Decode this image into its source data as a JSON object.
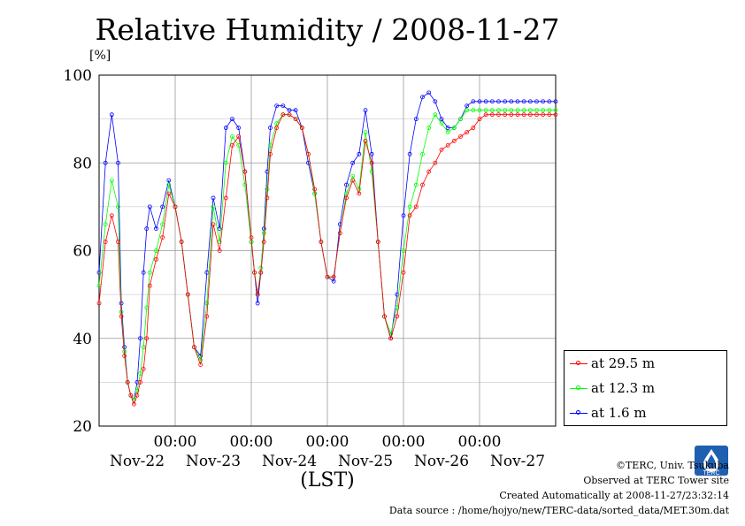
{
  "header": {
    "title": "Relative Humidity / 2008-11-27",
    "unit": "[%]"
  },
  "chart_data": {
    "type": "line",
    "title": "Relative Humidity / 2008-11-27",
    "ylabel": "[%]",
    "xlabel": "(LST)",
    "ylim": [
      20,
      100
    ],
    "xlim": [
      0,
      144
    ],
    "y_ticks": [
      20,
      40,
      60,
      80,
      100
    ],
    "x_tick_positions_hours": [
      0,
      24,
      48,
      72,
      96,
      120
    ],
    "x_time_labels": [
      "00:00",
      "00:00",
      "00:00",
      "00:00",
      "00:00"
    ],
    "x_date_labels": [
      "Nov-22",
      "Nov-23",
      "Nov-24",
      "Nov-25",
      "Nov-26",
      "Nov-27"
    ],
    "x_major_grid_hours": [
      24,
      48,
      72,
      96,
      120
    ],
    "grid": true,
    "legend_position": "bottom-right",
    "series": [
      {
        "name": "at 29.5 m",
        "color": "#ff0000",
        "x": [
          0,
          2,
          4,
          6,
          7,
          8,
          9,
          10,
          11,
          12,
          13,
          14,
          15,
          16,
          18,
          20,
          22,
          24,
          26,
          28,
          30,
          32,
          34,
          36,
          38,
          40,
          42,
          44,
          46,
          48,
          49,
          50,
          51,
          52,
          53,
          54,
          56,
          58,
          60,
          62,
          64,
          66,
          68,
          70,
          72,
          74,
          76,
          78,
          80,
          82,
          84,
          86,
          88,
          90,
          92,
          94,
          96,
          98,
          100,
          102,
          104,
          106,
          108,
          110,
          112,
          114,
          116,
          118,
          120,
          122,
          124,
          126,
          128,
          130,
          132,
          134,
          136,
          138,
          140,
          142,
          144
        ],
        "values": [
          48,
          62,
          68,
          62,
          45,
          36,
          30,
          27,
          25,
          27,
          30,
          33,
          40,
          52,
          58,
          63,
          73,
          70,
          62,
          50,
          38,
          34,
          45,
          66,
          60,
          72,
          84,
          86,
          78,
          63,
          55,
          50,
          55,
          62,
          72,
          82,
          88,
          91,
          91,
          90,
          88,
          82,
          74,
          62,
          54,
          54,
          64,
          72,
          76,
          73,
          85,
          80,
          62,
          45,
          40,
          45,
          55,
          68,
          70,
          75,
          78,
          80,
          83,
          84,
          85,
          86,
          87,
          88,
          90,
          91,
          91,
          91,
          91,
          91,
          91,
          91,
          91,
          91,
          91,
          91,
          91
        ]
      },
      {
        "name": "at 12.3 m",
        "color": "#00ff00",
        "x": [
          0,
          2,
          4,
          6,
          7,
          8,
          9,
          10,
          11,
          12,
          13,
          14,
          15,
          16,
          18,
          20,
          22,
          24,
          26,
          28,
          30,
          32,
          34,
          36,
          38,
          40,
          42,
          44,
          46,
          48,
          49,
          50,
          51,
          52,
          53,
          54,
          56,
          58,
          60,
          62,
          64,
          66,
          68,
          70,
          72,
          74,
          76,
          78,
          80,
          82,
          84,
          86,
          88,
          90,
          92,
          94,
          96,
          98,
          100,
          102,
          104,
          106,
          108,
          110,
          112,
          114,
          116,
          118,
          120,
          122,
          124,
          126,
          128,
          130,
          132,
          134,
          136,
          138,
          140,
          142,
          144
        ],
        "values": [
          52,
          66,
          76,
          70,
          46,
          37,
          30,
          27,
          26,
          28,
          32,
          38,
          47,
          55,
          60,
          66,
          75,
          70,
          62,
          50,
          38,
          35,
          48,
          70,
          62,
          80,
          86,
          84,
          75,
          62,
          55,
          50,
          56,
          64,
          74,
          84,
          89,
          91,
          91,
          90,
          88,
          82,
          73,
          62,
          54,
          54,
          64,
          73,
          77,
          74,
          87,
          78,
          62,
          45,
          41,
          47,
          60,
          70,
          75,
          82,
          88,
          91,
          89,
          87,
          88,
          90,
          92,
          92,
          92,
          92,
          92,
          92,
          92,
          92,
          92,
          92,
          92,
          92,
          92,
          92,
          92
        ]
      },
      {
        "name": "at 1.6 m",
        "color": "#0000ff",
        "x": [
          0,
          2,
          4,
          6,
          7,
          8,
          9,
          10,
          11,
          12,
          13,
          14,
          15,
          16,
          18,
          20,
          22,
          24,
          26,
          28,
          30,
          32,
          34,
          36,
          38,
          40,
          42,
          44,
          46,
          48,
          49,
          50,
          51,
          52,
          53,
          54,
          56,
          58,
          60,
          62,
          64,
          66,
          68,
          70,
          72,
          74,
          76,
          78,
          80,
          82,
          84,
          86,
          88,
          90,
          92,
          94,
          96,
          98,
          100,
          102,
          104,
          106,
          108,
          110,
          112,
          114,
          116,
          118,
          120,
          122,
          124,
          126,
          128,
          130,
          132,
          134,
          136,
          138,
          140,
          142,
          144
        ],
        "values": [
          55,
          80,
          91,
          80,
          48,
          38,
          30,
          27,
          26,
          30,
          40,
          55,
          65,
          70,
          65,
          70,
          76,
          70,
          62,
          50,
          38,
          36,
          55,
          72,
          65,
          88,
          90,
          88,
          78,
          62,
          55,
          48,
          55,
          65,
          78,
          88,
          93,
          93,
          92,
          92,
          88,
          80,
          73,
          62,
          54,
          53,
          66,
          75,
          80,
          82,
          92,
          82,
          62,
          45,
          40,
          50,
          68,
          82,
          90,
          95,
          96,
          94,
          90,
          88,
          88,
          90,
          93,
          94,
          94,
          94,
          94,
          94,
          94,
          94,
          94,
          94,
          94,
          94,
          94,
          94,
          94
        ]
      }
    ]
  },
  "footer": {
    "copyright": "©TERC, Univ. Tsukuba",
    "observed": "Observed at TERC Tower site",
    "created": "Created Automatically at 2008-11-27/23:32:14",
    "source": "Data source : /home/hojyo/new/TERC-data/sorted_data/MET.30m.dat",
    "logo_text": "TERC"
  }
}
